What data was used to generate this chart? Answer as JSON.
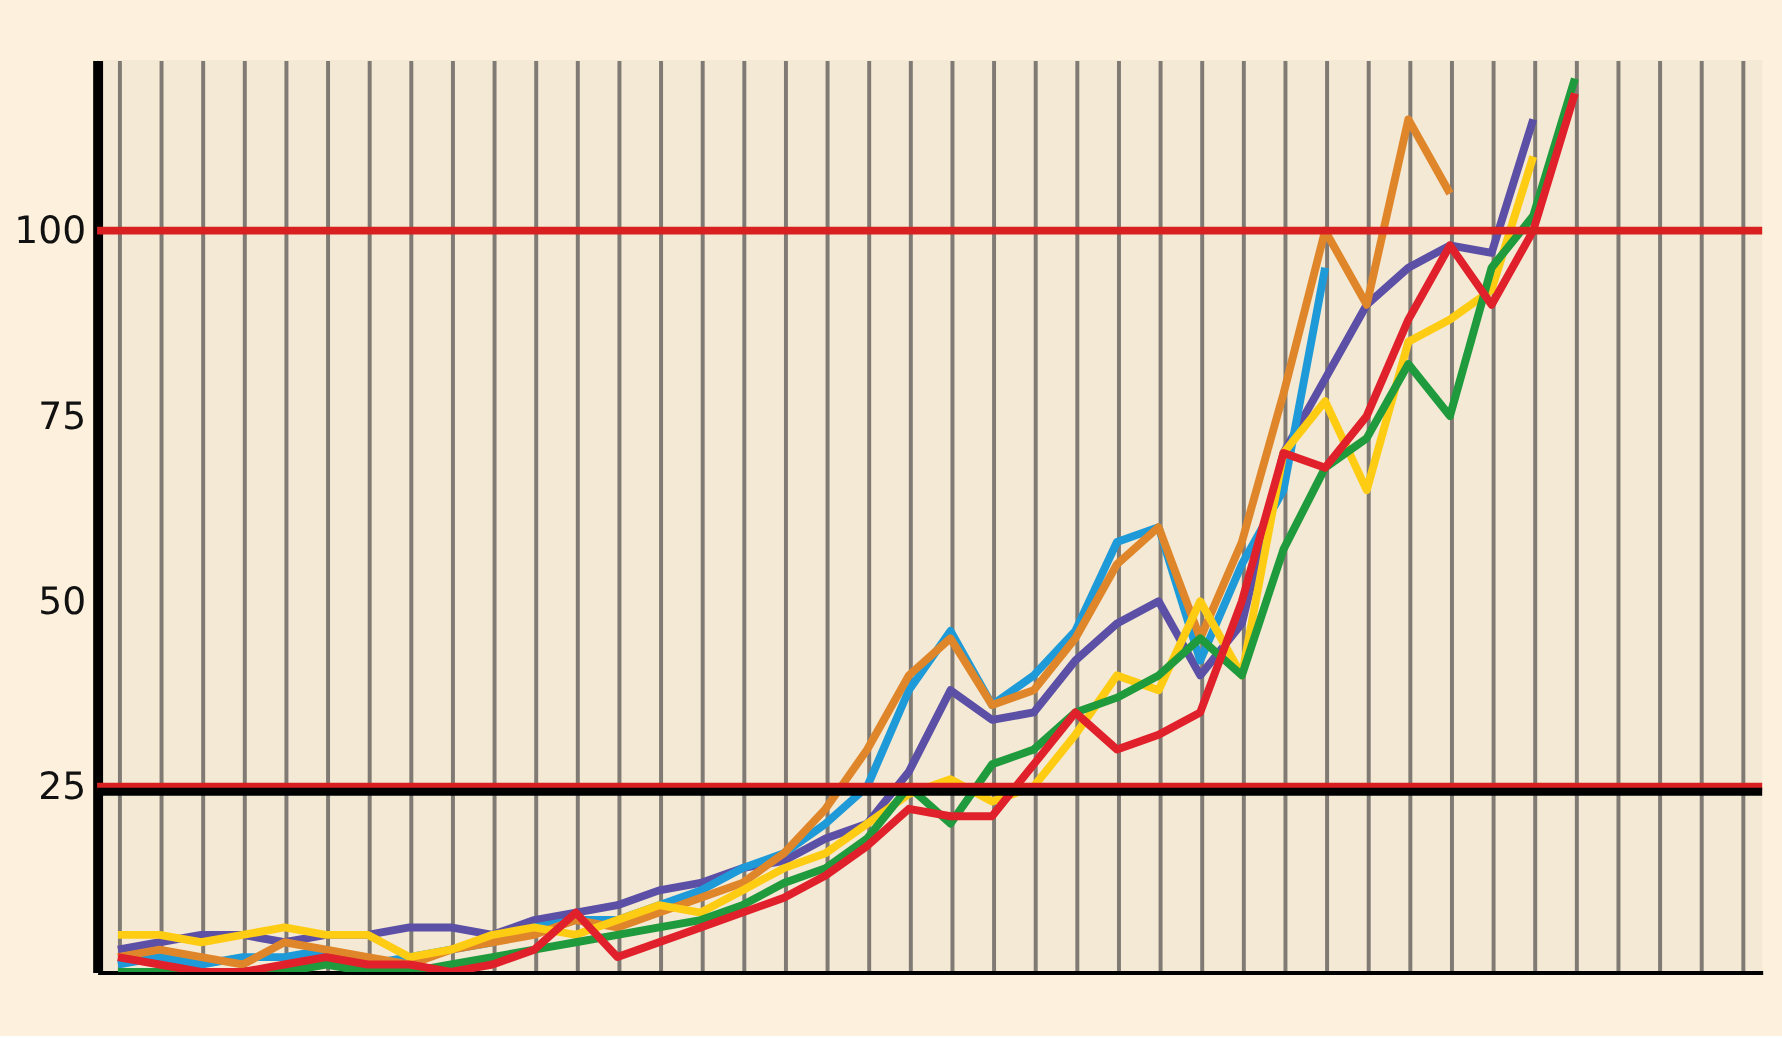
{
  "chart_data": {
    "type": "line",
    "categories": [
      null,
      null,
      null,
      null,
      null,
      null,
      null,
      null,
      null,
      null,
      null,
      null,
      null,
      null,
      null,
      null,
      null,
      null,
      null,
      null,
      null,
      null,
      null,
      null,
      null,
      null,
      null,
      null,
      null,
      null,
      null,
      null,
      null,
      null,
      null,
      null,
      null,
      null,
      null,
      null
    ],
    "series": [
      {
        "color": "#5b4fa6",
        "values": [
          3,
          4,
          5,
          5,
          4,
          5,
          5,
          6,
          6,
          5,
          7,
          8,
          9,
          11,
          12,
          14,
          15,
          18,
          20,
          27,
          38,
          34,
          35,
          42,
          47,
          50,
          40,
          47,
          70,
          80,
          90,
          95,
          98,
          97,
          115,
          null,
          null,
          null,
          null,
          null
        ]
      },
      {
        "color": "#1e9ad8",
        "values": [
          1,
          2,
          1,
          2,
          2,
          3,
          1,
          2,
          3,
          4,
          6,
          7,
          7,
          9,
          11,
          14,
          16,
          20,
          25,
          38,
          46,
          36,
          40,
          46,
          58,
          60,
          42,
          55,
          65,
          95,
          null,
          null,
          null,
          null,
          null,
          null,
          null,
          null,
          null,
          null
        ]
      },
      {
        "color": "#e0862a",
        "values": [
          2,
          3,
          2,
          1,
          4,
          3,
          2,
          1,
          3,
          4,
          5,
          7,
          6,
          8,
          10,
          12,
          16,
          22,
          30,
          40,
          45,
          36,
          38,
          45,
          55,
          60,
          45,
          58,
          78,
          100,
          90,
          115,
          105,
          null,
          null,
          null,
          null,
          null,
          null,
          null
        ]
      },
      {
        "color": "#ffcc14",
        "values": [
          5,
          5,
          4,
          5,
          6,
          5,
          5,
          2,
          3,
          5,
          6,
          5,
          7,
          9,
          8,
          11,
          14,
          16,
          20,
          24,
          26,
          23,
          25,
          32,
          40,
          38,
          50,
          40,
          70,
          77,
          65,
          85,
          88,
          92,
          110,
          null,
          null,
          null,
          null,
          null
        ]
      },
      {
        "color": "#1f9a3c",
        "values": [
          0,
          0,
          0,
          0,
          0,
          1,
          0,
          0,
          1,
          2,
          3,
          4,
          5,
          6,
          7,
          9,
          12,
          14,
          18,
          25,
          20,
          28,
          30,
          35,
          37,
          40,
          45,
          40,
          57,
          68,
          72,
          82,
          75,
          95,
          102,
          120.5,
          null,
          null,
          null,
          null
        ]
      },
      {
        "color": "#e0202a",
        "values": [
          2,
          1,
          0,
          0,
          1,
          2,
          1,
          1,
          0,
          1,
          3,
          8,
          2,
          4,
          6,
          8,
          10,
          13,
          17,
          22,
          21,
          21,
          28,
          35,
          30,
          32,
          35,
          50,
          70,
          68,
          75,
          88,
          98,
          90,
          100,
          118.5,
          null,
          null,
          null,
          null
        ]
      }
    ],
    "ylim": [
      0,
      123
    ],
    "yticks": [
      25,
      50,
      75,
      100
    ],
    "ref_lines": [
      {
        "axis": "y",
        "value": 100,
        "color": "#d92020"
      },
      {
        "axis": "y",
        "value": 25,
        "color": "#d92020"
      },
      {
        "axis": "y",
        "value": 24.3,
        "color": "#000000"
      }
    ],
    "grid": "x",
    "legend": false,
    "marker": "none",
    "line_style": "solid"
  }
}
